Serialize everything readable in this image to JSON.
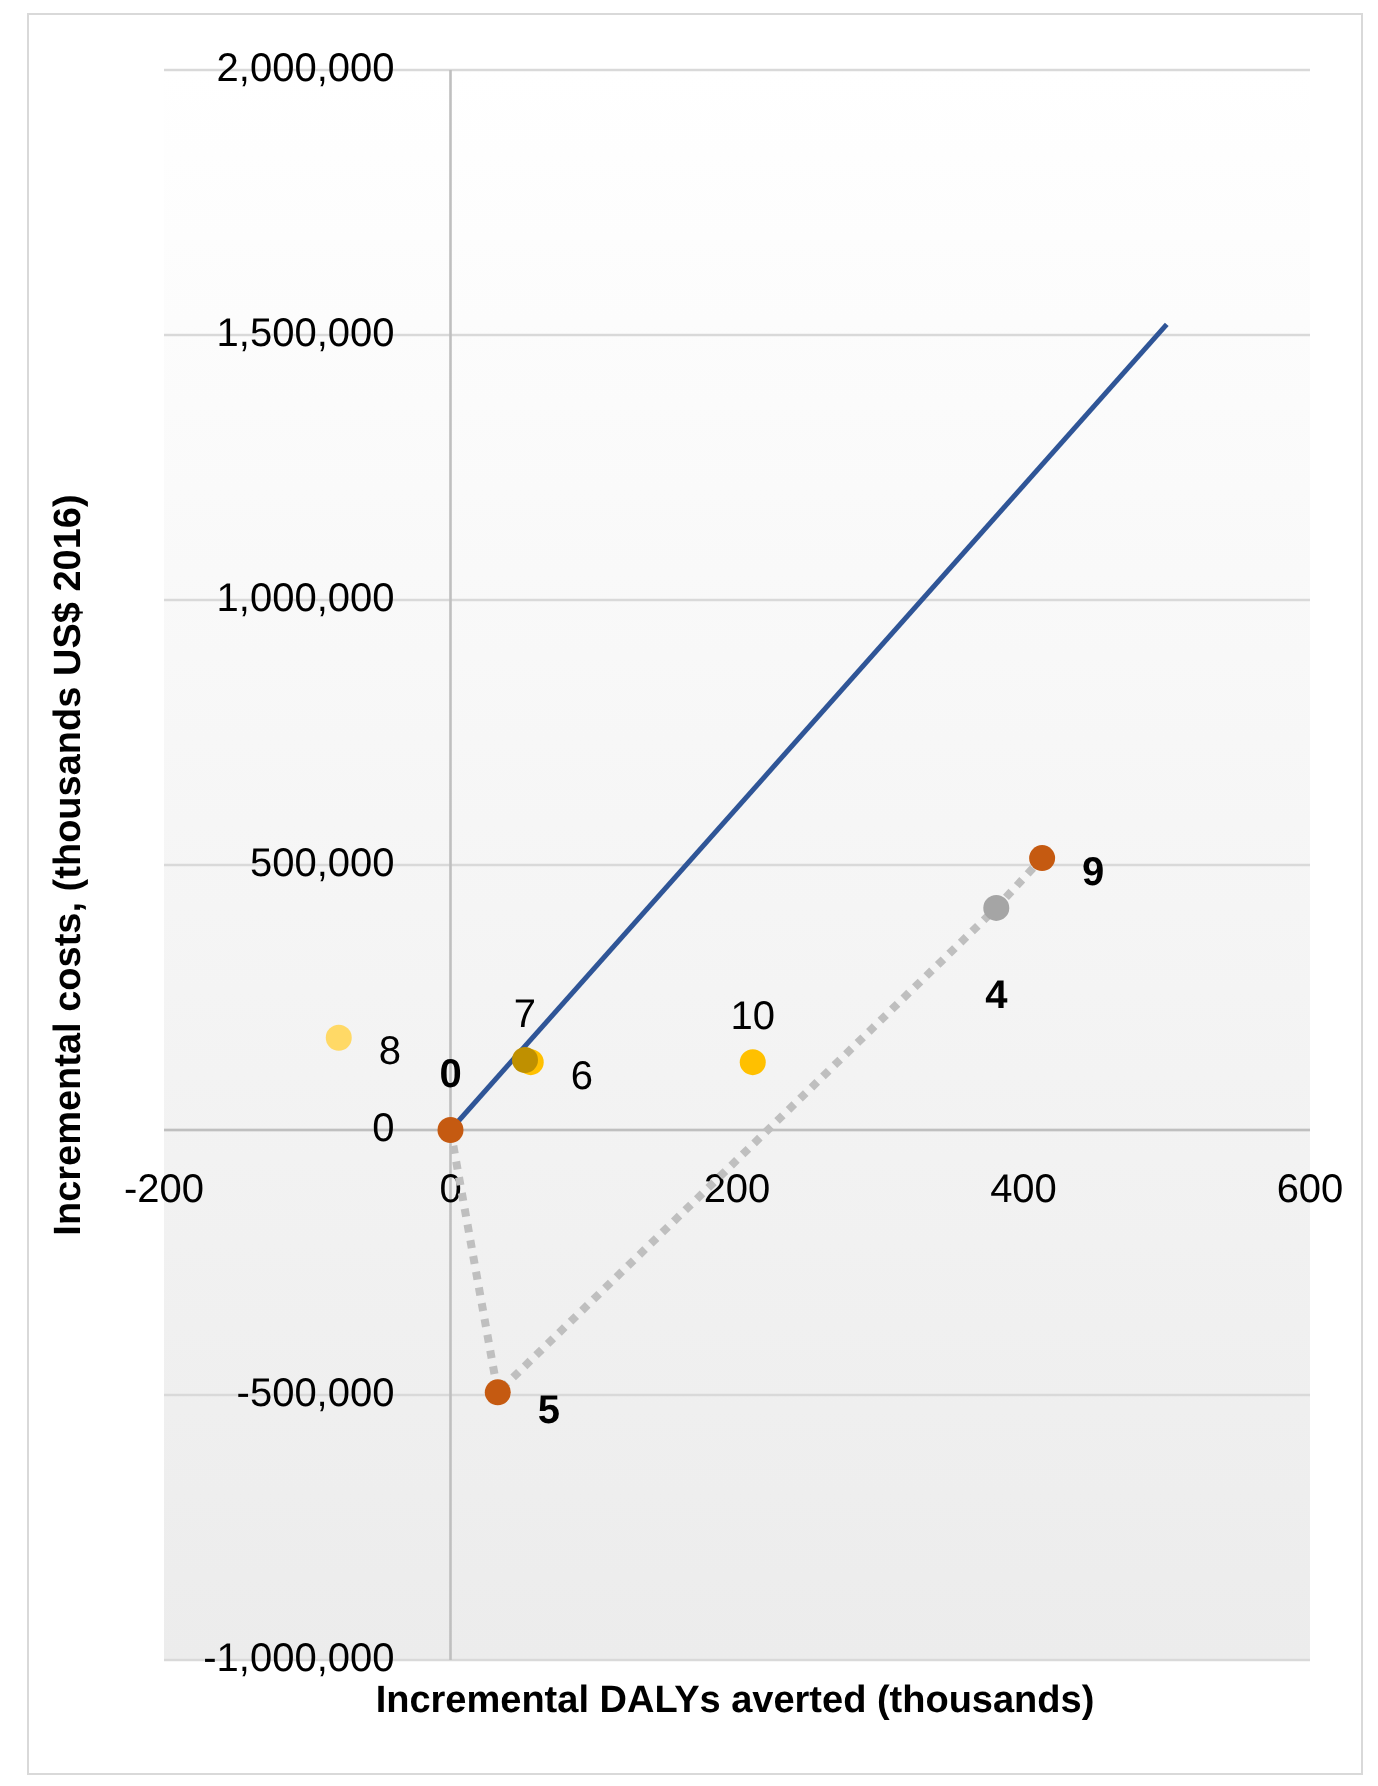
{
  "chart_data": {
    "type": "scatter",
    "xlabel": "Incremental DALYs averted (thousands)",
    "ylabel": "Incremental costs, (thousands US$ 2016)",
    "xlim": [
      -200,
      600
    ],
    "xticks": [
      -200,
      0,
      200,
      400,
      600
    ],
    "ylim": [
      -1000000,
      2000000
    ],
    "yticks": [
      {
        "value": -1000000,
        "label": "-1,000,000"
      },
      {
        "value": -500000,
        "label": "-500,000"
      },
      0,
      {
        "value": 500000,
        "label": "500,000"
      },
      {
        "value": 1000000,
        "label": "1,000,000"
      },
      {
        "value": 1500000,
        "label": "1,500,000"
      },
      {
        "value": 2000000,
        "label": "2,000,000"
      }
    ],
    "grid": "y",
    "marker": "circle",
    "series": [
      {
        "type": "line",
        "color": "#2f5597",
        "x": [
          0,
          500
        ],
        "values": [
          0,
          1520000
        ],
        "marker": "none",
        "line_style": "solid"
      },
      {
        "type": "line",
        "color": "#bfbfbf",
        "x": [
          0,
          33,
          381,
          413
        ],
        "values": [
          0,
          -495000,
          419000,
          513000
        ],
        "marker": "none",
        "line_style": "dotted"
      },
      {
        "name": "8",
        "color": "#ffd966",
        "x": [
          -78
        ],
        "values": [
          174000
        ]
      },
      {
        "name": "6",
        "color": "#ffc000",
        "x": [
          56
        ],
        "values": [
          128000
        ]
      },
      {
        "name": "7",
        "color": "#bf9000",
        "x": [
          52
        ],
        "values": [
          132000
        ]
      },
      {
        "name": "10",
        "color": "#ffc000",
        "x": [
          211
        ],
        "values": [
          128000
        ]
      },
      {
        "name": "0",
        "color": "#c55a11",
        "x": [
          0
        ],
        "values": [
          0
        ]
      },
      {
        "name": "5",
        "color": "#c55a11",
        "x": [
          33
        ],
        "values": [
          -495000
        ]
      },
      {
        "name": "4",
        "color": "#a5a5a5",
        "x": [
          381
        ],
        "values": [
          419000
        ]
      },
      {
        "name": "9",
        "color": "#c55a11",
        "x": [
          413
        ],
        "values": [
          513000
        ]
      }
    ]
  }
}
